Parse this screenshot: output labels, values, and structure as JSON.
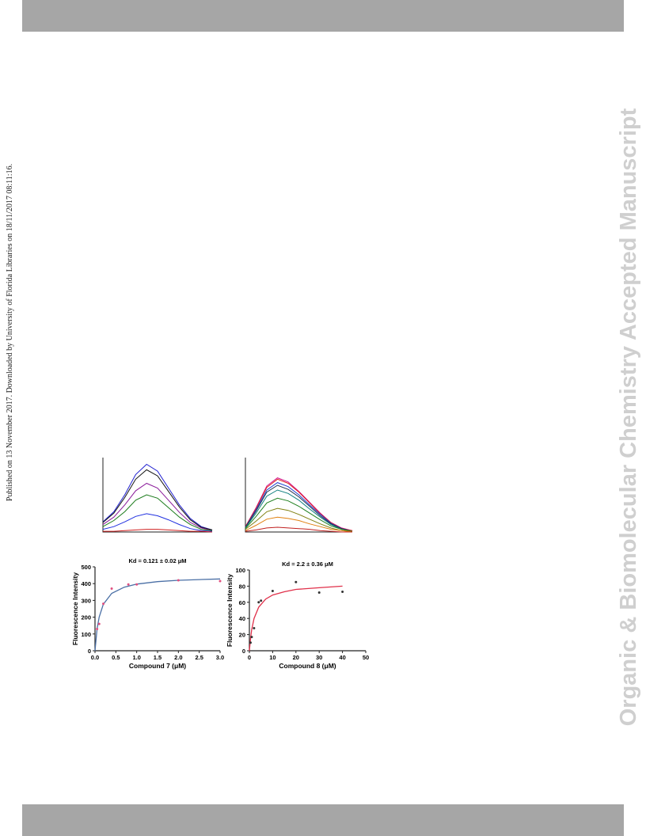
{
  "side_note": "Published on 13 November 2017. Downloaded by University of Florida Libraries on 18/11/2017 08:11:16.",
  "watermark": "Organic & Biomolecular Chemistry Accepted Manuscript",
  "chart_data": [
    {
      "type": "line",
      "x": [
        0,
        1,
        2,
        3,
        4,
        5,
        6,
        7,
        8,
        9,
        10
      ],
      "xlim": [
        0,
        10
      ],
      "ylim": [
        0,
        110
      ],
      "series": [
        {
          "color": "#1f1fd0",
          "values": [
            15,
            30,
            55,
            85,
            100,
            90,
            65,
            40,
            20,
            8,
            3
          ]
        },
        {
          "color": "#111111",
          "values": [
            14,
            28,
            51,
            78,
            92,
            83,
            60,
            37,
            18,
            7,
            3
          ]
        },
        {
          "color": "#8a1a9a",
          "values": [
            11,
            22,
            40,
            61,
            72,
            65,
            47,
            29,
            14,
            6,
            2
          ]
        },
        {
          "color": "#1a7a1a",
          "values": [
            8,
            17,
            30,
            47,
            55,
            50,
            36,
            22,
            11,
            4,
            2
          ]
        },
        {
          "color": "#2030e0",
          "values": [
            4,
            8,
            15,
            23,
            27,
            24,
            18,
            11,
            5,
            2,
            1
          ]
        },
        {
          "color": "#d02020",
          "values": [
            1,
            1,
            2,
            3,
            4,
            4,
            3,
            2,
            1,
            1,
            0
          ]
        }
      ]
    },
    {
      "type": "line",
      "x": [
        0,
        1,
        2,
        3,
        4,
        5,
        6,
        7,
        8,
        9,
        10
      ],
      "xlim": [
        0,
        10
      ],
      "ylim": [
        0,
        110
      ],
      "series": [
        {
          "color": "#d0108a",
          "values": [
            8,
            36,
            68,
            80,
            74,
            60,
            44,
            28,
            14,
            6,
            2
          ]
        },
        {
          "color": "#e02020",
          "values": [
            8,
            35,
            66,
            78,
            72,
            59,
            43,
            27,
            14,
            5,
            2
          ]
        },
        {
          "color": "#2040d0",
          "values": [
            7,
            33,
            62,
            73,
            67,
            55,
            40,
            26,
            13,
            5,
            1
          ]
        },
        {
          "color": "#203050",
          "values": [
            7,
            31,
            59,
            69,
            63,
            52,
            38,
            24,
            12,
            5,
            1
          ]
        },
        {
          "color": "#108080",
          "values": [
            6,
            28,
            53,
            62,
            57,
            47,
            34,
            22,
            11,
            4,
            1
          ]
        },
        {
          "color": "#208020",
          "values": [
            5,
            23,
            43,
            50,
            46,
            38,
            28,
            18,
            9,
            4,
            1
          ]
        },
        {
          "color": "#808010",
          "values": [
            4,
            16,
            30,
            35,
            32,
            26,
            19,
            12,
            6,
            2,
            1
          ]
        },
        {
          "color": "#e08010",
          "values": [
            2,
            10,
            19,
            22,
            20,
            17,
            12,
            8,
            4,
            2,
            0
          ]
        },
        {
          "color": "#c02020",
          "values": [
            1,
            3,
            6,
            7,
            6,
            5,
            4,
            2,
            1,
            0,
            0
          ]
        }
      ]
    },
    {
      "type": "scatter",
      "title": "Kd = 0.121 ± 0.02 μM",
      "x_label": "Compound 7 (μM)",
      "y_label": "Fluorescence Intensity",
      "xlim": [
        0,
        3
      ],
      "ylim": [
        0,
        500
      ],
      "xticks": [
        {
          "value": 0,
          "label": "0.0"
        },
        {
          "value": 0.5,
          "label": "0.5"
        },
        {
          "value": 1,
          "label": "1.0"
        },
        {
          "value": 1.5,
          "label": "1.5"
        },
        {
          "value": 2,
          "label": "2.0"
        },
        {
          "value": 2.5,
          "label": "2.5"
        },
        {
          "value": 3,
          "label": "3.0"
        }
      ],
      "yticks": [
        0,
        100,
        200,
        300,
        400,
        500
      ],
      "points": {
        "color": "#e05080",
        "x": [
          0.05,
          0.1,
          0.2,
          0.4,
          0.8,
          1.0,
          2.0,
          3.0
        ],
        "y": [
          130,
          160,
          280,
          370,
          395,
          395,
          420,
          415
        ]
      },
      "fit": {
        "color": "#4a6fa5",
        "x": [
          0,
          0.05,
          0.1,
          0.2,
          0.4,
          0.7,
          1,
          1.5,
          2,
          2.5,
          3
        ],
        "y": [
          0,
          130,
          201,
          277,
          342,
          379,
          397,
          412,
          420,
          424,
          428
        ]
      }
    },
    {
      "type": "scatter",
      "title": "Kd = 2.2 ± 0.36 μM",
      "x_label": "Compound 8 (μM)",
      "y_label": "Fluorescence Intensity",
      "xlim": [
        0,
        50
      ],
      "ylim": [
        0,
        100
      ],
      "xticks": [
        0,
        10,
        20,
        30,
        40,
        50
      ],
      "yticks": [
        0,
        20,
        40,
        60,
        80,
        100
      ],
      "points": {
        "color": "#333333",
        "x": [
          0.5,
          1,
          2,
          4,
          5,
          10,
          20,
          30,
          40
        ],
        "y": [
          10,
          17,
          28,
          60,
          62,
          74,
          85,
          72,
          73
        ]
      },
      "fit": {
        "color": "#e0304a",
        "x": [
          0,
          0.5,
          1,
          2,
          4,
          7,
          10,
          15,
          20,
          30,
          40
        ],
        "y": [
          0,
          15.6,
          26,
          40,
          54,
          64,
          69,
          73,
          76,
          78,
          80
        ]
      }
    }
  ]
}
